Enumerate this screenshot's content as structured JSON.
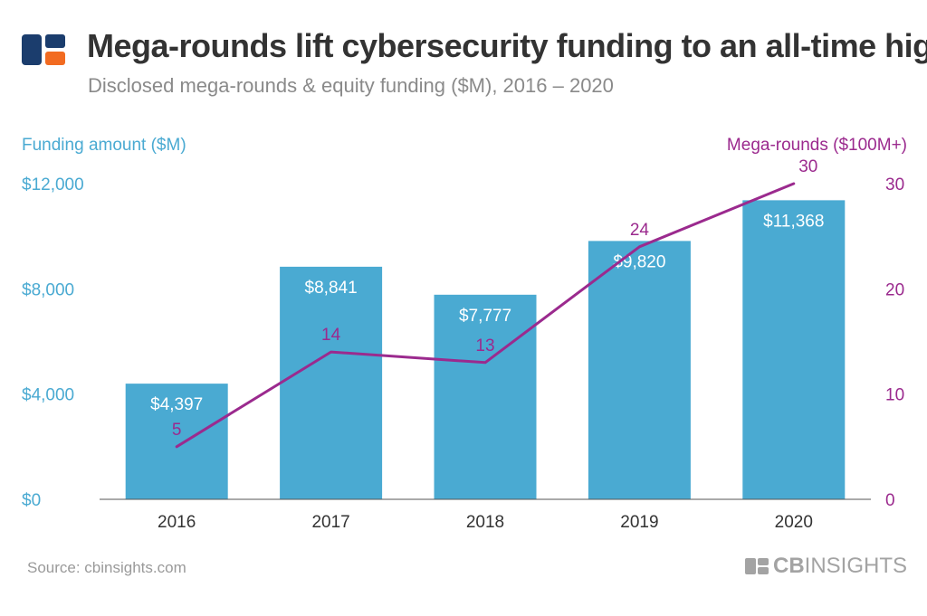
{
  "header": {
    "title": "Mega-rounds lift cybersecurity funding to an all-time high",
    "subtitle": "Disclosed mega-rounds & equity funding ($M), 2016 – 2020"
  },
  "footer": {
    "source": "Source: cbinsights.com",
    "brand_bold": "CB",
    "brand_rest": "INSIGHTS"
  },
  "colors": {
    "bars": "#4aaad2",
    "line": "#9b2a8e",
    "logo_blue": "#1b3d6d",
    "logo_orange": "#f26b21"
  },
  "chart_data": {
    "type": "bar",
    "title": "Mega-rounds lift cybersecurity funding to an all-time high",
    "subtitle": "Disclosed mega-rounds & equity funding ($M), 2016 – 2020",
    "categories": [
      "2016",
      "2017",
      "2018",
      "2019",
      "2020"
    ],
    "series": [
      {
        "name": "Funding amount ($M)",
        "type": "bar",
        "axis": "left",
        "values": [
          4397,
          8841,
          7777,
          9820,
          11368
        ],
        "labels": [
          "$4,397",
          "$8,841",
          "$7,777",
          "$9,820",
          "$11,368"
        ]
      },
      {
        "name": "Mega-rounds ($100M+)",
        "type": "line",
        "axis": "right",
        "values": [
          5,
          14,
          13,
          24,
          30
        ],
        "labels": [
          "5",
          "14",
          "13",
          "24",
          "30"
        ]
      }
    ],
    "ylabel_left": "Funding amount ($M)",
    "ylabel_right": "Mega-rounds ($100M+)",
    "ylim_left": [
      0,
      12000
    ],
    "ylim_right": [
      0,
      30
    ],
    "yticks_left": [
      0,
      4000,
      8000,
      12000
    ],
    "yticks_left_labels": [
      "$0",
      "$4,000",
      "$8,000",
      "$12,000"
    ],
    "yticks_right": [
      0,
      10,
      20,
      30
    ],
    "yticks_right_labels": [
      "0",
      "10",
      "20",
      "30"
    ],
    "grid": false,
    "legend": "none"
  }
}
